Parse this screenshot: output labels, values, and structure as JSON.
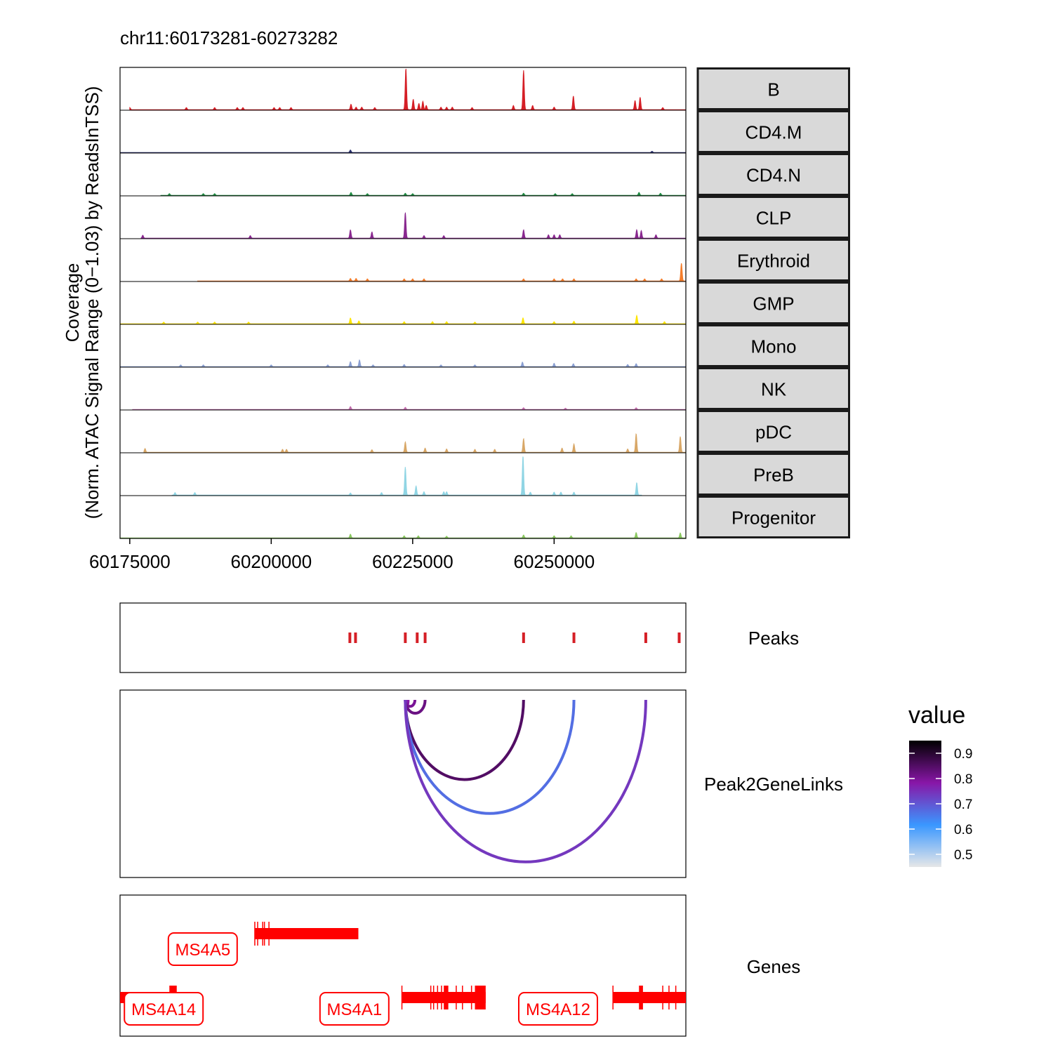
{
  "chart_data": {
    "type": "area",
    "title": "chr11:60173281-60273282",
    "ylabel_line1": "Coverage",
    "ylabel_line2": "(Norm. ATAC Signal Range (0−1.03) by ReadsInTSS)",
    "xlim": [
      60173281,
      60273282
    ],
    "x_ticks": [
      60175000,
      60200000,
      60225000,
      60250000
    ],
    "x_tick_labels": [
      "60175000",
      "60200000",
      "60225000",
      "60250000"
    ],
    "ylim": [
      0,
      1.03
    ],
    "tracks": [
      {
        "name": "B",
        "color": "#D51F26",
        "start": 60175000,
        "peaks": [
          [
            60175000,
            0.05
          ],
          [
            60185000,
            0.05
          ],
          [
            60190000,
            0.05
          ],
          [
            60194000,
            0.05
          ],
          [
            60195000,
            0.05
          ],
          [
            60200500,
            0.05
          ],
          [
            60201500,
            0.05
          ],
          [
            60203500,
            0.05
          ],
          [
            60214100,
            0.13
          ],
          [
            60215000,
            0.06
          ],
          [
            60216000,
            0.06
          ],
          [
            60218300,
            0.05
          ],
          [
            60223800,
            1.0
          ],
          [
            60225100,
            0.25
          ],
          [
            60226100,
            0.15
          ],
          [
            60226800,
            0.2
          ],
          [
            60227400,
            0.1
          ],
          [
            60230000,
            0.06
          ],
          [
            60231000,
            0.06
          ],
          [
            60232000,
            0.06
          ],
          [
            60235500,
            0.05
          ],
          [
            60242800,
            0.1
          ],
          [
            60244600,
            0.95
          ],
          [
            60246200,
            0.1
          ],
          [
            60250000,
            0.06
          ],
          [
            60253400,
            0.33
          ],
          [
            60264300,
            0.22
          ],
          [
            60265200,
            0.3
          ],
          [
            60269200,
            0.05
          ]
        ]
      },
      {
        "name": "CD4.M",
        "color": "#272E6A",
        "start": 60173281,
        "peaks": [
          [
            60214000,
            0.06
          ],
          [
            60267300,
            0.03
          ]
        ]
      },
      {
        "name": "CD4.N",
        "color": "#208A42",
        "start": 60180500,
        "peaks": [
          [
            60182000,
            0.04
          ],
          [
            60188000,
            0.04
          ],
          [
            60190000,
            0.04
          ],
          [
            60214100,
            0.07
          ],
          [
            60217000,
            0.04
          ],
          [
            60223700,
            0.05
          ],
          [
            60225000,
            0.04
          ],
          [
            60244600,
            0.05
          ],
          [
            60250200,
            0.04
          ],
          [
            60253200,
            0.04
          ],
          [
            60265000,
            0.07
          ],
          [
            60268800,
            0.05
          ]
        ]
      },
      {
        "name": "CLP",
        "color": "#89288F",
        "start": 60177000,
        "peaks": [
          [
            60177300,
            0.07
          ],
          [
            60196300,
            0.06
          ],
          [
            60214000,
            0.2
          ],
          [
            60217800,
            0.15
          ],
          [
            60223700,
            0.62
          ],
          [
            60227000,
            0.06
          ],
          [
            60230500,
            0.06
          ],
          [
            60244600,
            0.2
          ],
          [
            60249000,
            0.08
          ],
          [
            60250000,
            0.08
          ],
          [
            60251000,
            0.08
          ],
          [
            60264600,
            0.2
          ],
          [
            60265400,
            0.18
          ],
          [
            60268000,
            0.08
          ]
        ]
      },
      {
        "name": "Erythroid",
        "color": "#F47D2B",
        "start": 60187000,
        "peaks": [
          [
            60214000,
            0.06
          ],
          [
            60215000,
            0.06
          ],
          [
            60217000,
            0.05
          ],
          [
            60223500,
            0.05
          ],
          [
            60225000,
            0.05
          ],
          [
            60227000,
            0.05
          ],
          [
            60244600,
            0.05
          ],
          [
            60250000,
            0.05
          ],
          [
            60251500,
            0.05
          ],
          [
            60253500,
            0.05
          ],
          [
            60264500,
            0.05
          ],
          [
            60266000,
            0.05
          ],
          [
            60269000,
            0.05
          ],
          [
            60272500,
            0.43
          ]
        ]
      },
      {
        "name": "GMP",
        "color": "#FEE500",
        "start": 60173281,
        "peaks": [
          [
            60181000,
            0.04
          ],
          [
            60187000,
            0.04
          ],
          [
            60190000,
            0.04
          ],
          [
            60196000,
            0.04
          ],
          [
            60214000,
            0.14
          ],
          [
            60215500,
            0.07
          ],
          [
            60223500,
            0.05
          ],
          [
            60228500,
            0.05
          ],
          [
            60231000,
            0.05
          ],
          [
            60236000,
            0.04
          ],
          [
            60244500,
            0.14
          ],
          [
            60250000,
            0.05
          ],
          [
            60253500,
            0.06
          ],
          [
            60264600,
            0.2
          ],
          [
            60269500,
            0.05
          ]
        ]
      },
      {
        "name": "Mono",
        "color": "#8A9FD1",
        "start": 60173281,
        "peaks": [
          [
            60184000,
            0.04
          ],
          [
            60188000,
            0.04
          ],
          [
            60200000,
            0.04
          ],
          [
            60210000,
            0.04
          ],
          [
            60214000,
            0.12
          ],
          [
            60215600,
            0.16
          ],
          [
            60218000,
            0.04
          ],
          [
            60223500,
            0.05
          ],
          [
            60230000,
            0.04
          ],
          [
            60236000,
            0.04
          ],
          [
            60244400,
            0.11
          ],
          [
            60250000,
            0.08
          ],
          [
            60253400,
            0.07
          ],
          [
            60263000,
            0.05
          ],
          [
            60264500,
            0.07
          ]
        ]
      },
      {
        "name": "NK",
        "color": "#C06CAB",
        "start": 60175500,
        "peaks": [
          [
            60214000,
            0.07
          ],
          [
            60223700,
            0.05
          ],
          [
            60244600,
            0.04
          ],
          [
            60252000,
            0.03
          ],
          [
            60264500,
            0.04
          ]
        ]
      },
      {
        "name": "pDC",
        "color": "#D8A767",
        "start": 60177500,
        "peaks": [
          [
            60177700,
            0.09
          ],
          [
            60202000,
            0.07
          ],
          [
            60202700,
            0.07
          ],
          [
            60217800,
            0.06
          ],
          [
            60223700,
            0.25
          ],
          [
            60227200,
            0.1
          ],
          [
            60231000,
            0.08
          ],
          [
            60236000,
            0.07
          ],
          [
            60239500,
            0.07
          ],
          [
            60244600,
            0.33
          ],
          [
            60251400,
            0.1
          ],
          [
            60253500,
            0.2
          ],
          [
            60263000,
            0.08
          ],
          [
            60264500,
            0.45
          ],
          [
            60272300,
            0.38
          ]
        ]
      },
      {
        "name": "PreB",
        "color": "#90D5E4",
        "start": 60182500,
        "end": 60265500,
        "peaks": [
          [
            60183000,
            0.06
          ],
          [
            60186500,
            0.06
          ],
          [
            60214000,
            0.05
          ],
          [
            60219500,
            0.06
          ],
          [
            60223700,
            0.68
          ],
          [
            60225600,
            0.22
          ],
          [
            60227000,
            0.08
          ],
          [
            60230500,
            0.08
          ],
          [
            60231000,
            0.08
          ],
          [
            60244500,
            0.95
          ],
          [
            60245800,
            0.07
          ],
          [
            60250000,
            0.07
          ],
          [
            60251200,
            0.07
          ],
          [
            60253500,
            0.07
          ],
          [
            60264600,
            0.3
          ]
        ]
      },
      {
        "name": "Progenitor",
        "color": "#89C75F",
        "start": 60173281,
        "peaks": [
          [
            60214000,
            0.09
          ],
          [
            60223500,
            0.05
          ],
          [
            60226000,
            0.05
          ],
          [
            60231000,
            0.04
          ],
          [
            60244600,
            0.07
          ],
          [
            60250000,
            0.05
          ],
          [
            60253000,
            0.05
          ],
          [
            60264500,
            0.13
          ],
          [
            60272300,
            0.12
          ]
        ]
      }
    ],
    "peaks_track": {
      "label": "Peaks",
      "color": "#D51F26",
      "positions": [
        60213900,
        60214900,
        60223700,
        60225800,
        60227200,
        60244600,
        60253500,
        60266200,
        60272100
      ]
    },
    "links_track": {
      "label": "Peak2GeneLinks",
      "links": [
        {
          "start": 60223700,
          "end": 60224200,
          "value": 0.78
        },
        {
          "start": 60223700,
          "end": 60225400,
          "value": 0.8
        },
        {
          "start": 60223700,
          "end": 60227200,
          "value": 0.82
        },
        {
          "start": 60223700,
          "end": 60244600,
          "value": 0.85
        },
        {
          "start": 60223700,
          "end": 60253500,
          "value": 0.67
        },
        {
          "start": 60223700,
          "end": 60266200,
          "value": 0.74
        }
      ],
      "legend_title": "value",
      "legend_ticks": [
        0.5,
        0.6,
        0.7,
        0.8,
        0.9
      ],
      "legend_tick_labels": [
        "0.5",
        "0.6",
        "0.7",
        "0.8",
        "0.9"
      ],
      "legend_range": [
        0.45,
        0.95
      ],
      "palette": [
        "#E6E7E8",
        "#3A97FF",
        "#8816A7",
        "#000000"
      ]
    },
    "genes_track": {
      "label": "Genes",
      "color": "#FF0000",
      "genes": [
        {
          "name": "MS4A14",
          "start": 60173281,
          "end": 60183300,
          "row": 2,
          "thick": [
            [
              60182000,
              60183300
            ]
          ],
          "exons": [],
          "label_x": 60181000
        },
        {
          "name": "MS4A5",
          "start": 60197100,
          "end": 60215400,
          "row": 1,
          "thick": [],
          "exons": [
            60197100,
            60197600,
            60198500,
            60198800,
            60199600
          ],
          "label_x": 60187900
        },
        {
          "name": "MS4A1",
          "start": 60223100,
          "end": 60237900,
          "row": 2,
          "thick": [
            [
              60230500,
              60231300
            ],
            [
              60236000,
              60237900
            ]
          ],
          "exons": [
            60223100,
            60228200,
            60228700,
            60229400,
            60230100,
            60232700,
            60233800,
            60235400
          ],
          "label_x": 60214700
        },
        {
          "name": "MS4A12",
          "start": 60260400,
          "end": 60273282,
          "row": 2,
          "thick": [
            [
              60265000,
              60265700
            ]
          ],
          "exons": [
            60260400,
            60269200,
            60270300,
            60271500
          ],
          "label_x": 60250700
        }
      ]
    }
  }
}
